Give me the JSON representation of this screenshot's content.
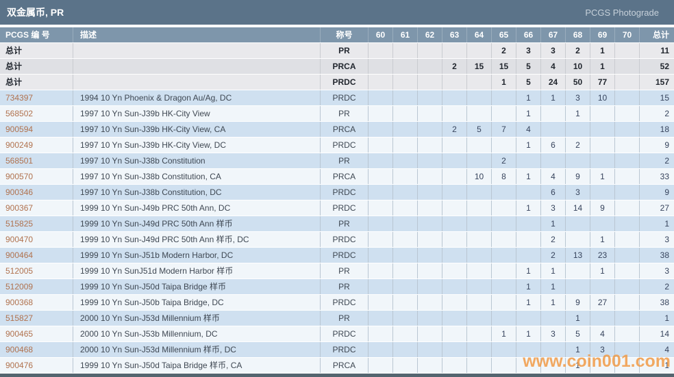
{
  "header": {
    "title": "双金属币, PR",
    "right_label": "PCGS Photograde"
  },
  "columns": [
    "PCGS 编 号",
    "描述",
    "称号",
    "60",
    "61",
    "62",
    "63",
    "64",
    "65",
    "66",
    "67",
    "68",
    "69",
    "70",
    "总计"
  ],
  "grade_keys": [
    "60",
    "61",
    "62",
    "63",
    "64",
    "65",
    "66",
    "67",
    "68",
    "69",
    "70"
  ],
  "total_label": "总计",
  "total_rows": [
    {
      "designation": "PR",
      "grades": {
        "65": 2,
        "66": 3,
        "67": 3,
        "68": 2,
        "69": 1
      },
      "total": 11
    },
    {
      "designation": "PRCA",
      "grades": {
        "63": 2,
        "64": 15,
        "65": 15,
        "66": 5,
        "67": 4,
        "68": 10,
        "69": 1
      },
      "total": 52
    },
    {
      "designation": "PRDC",
      "grades": {
        "65": 1,
        "66": 5,
        "67": 24,
        "68": 50,
        "69": 77
      },
      "total": 157
    }
  ],
  "rows": [
    {
      "pcgs_number": "734397",
      "description": "1994 10 Yn Phoenix & Dragon Au/Ag, DC",
      "designation": "PRDC",
      "grades": {
        "66": 1,
        "67": 1,
        "68": 3,
        "69": 10
      },
      "total": 15
    },
    {
      "pcgs_number": "568502",
      "description": "1997 10 Yn Sun-J39b HK-City View",
      "designation": "PR",
      "grades": {
        "66": 1,
        "68": 1
      },
      "total": 2
    },
    {
      "pcgs_number": "900594",
      "description": "1997 10 Yn Sun-J39b HK-City View, CA",
      "designation": "PRCA",
      "grades": {
        "63": 2,
        "64": 5,
        "65": 7,
        "66": 4
      },
      "total": 18
    },
    {
      "pcgs_number": "900249",
      "description": "1997 10 Yn Sun-J39b HK-City View, DC",
      "designation": "PRDC",
      "grades": {
        "66": 1,
        "67": 6,
        "68": 2
      },
      "total": 9
    },
    {
      "pcgs_number": "568501",
      "description": "1997 10 Yn Sun-J38b Constitution",
      "designation": "PR",
      "grades": {
        "65": 2
      },
      "total": 2
    },
    {
      "pcgs_number": "900570",
      "description": "1997 10 Yn Sun-J38b Constitution, CA",
      "designation": "PRCA",
      "grades": {
        "64": 10,
        "65": 8,
        "66": 1,
        "67": 4,
        "68": 9,
        "69": 1
      },
      "total": 33
    },
    {
      "pcgs_number": "900346",
      "description": "1997 10 Yn Sun-J38b Constitution, DC",
      "designation": "PRDC",
      "grades": {
        "67": 6,
        "68": 3
      },
      "total": 9
    },
    {
      "pcgs_number": "900367",
      "description": "1999 10 Yn Sun-J49b PRC 50th Ann, DC",
      "designation": "PRDC",
      "grades": {
        "66": 1,
        "67": 3,
        "68": 14,
        "69": 9
      },
      "total": 27
    },
    {
      "pcgs_number": "515825",
      "description": "1999 10 Yn Sun-J49d PRC 50th Ann 样币",
      "designation": "PR",
      "grades": {
        "67": 1
      },
      "total": 1
    },
    {
      "pcgs_number": "900470",
      "description": "1999 10 Yn Sun-J49d PRC 50th Ann 样币, DC",
      "designation": "PRDC",
      "grades": {
        "67": 2,
        "69": 1
      },
      "total": 3
    },
    {
      "pcgs_number": "900464",
      "description": "1999 10 Yn Sun-J51b Modern Harbor, DC",
      "designation": "PRDC",
      "grades": {
        "67": 2,
        "68": 13,
        "69": 23
      },
      "total": 38
    },
    {
      "pcgs_number": "512005",
      "description": "1999 10 Yn SunJ51d Modern Harbor 样币",
      "designation": "PR",
      "grades": {
        "66": 1,
        "67": 1,
        "69": 1
      },
      "total": 3
    },
    {
      "pcgs_number": "512009",
      "description": "1999 10 Yn Sun-J50d Taipa Bridge 样币",
      "designation": "PR",
      "grades": {
        "66": 1,
        "67": 1
      },
      "total": 2
    },
    {
      "pcgs_number": "900368",
      "description": "1999 10 Yn Sun-J50b Taipa Bridge, DC",
      "designation": "PRDC",
      "grades": {
        "66": 1,
        "67": 1,
        "68": 9,
        "69": 27
      },
      "total": 38
    },
    {
      "pcgs_number": "515827",
      "description": "2000 10 Yn Sun-J53d Millennium 样币",
      "designation": "PR",
      "grades": {
        "68": 1
      },
      "total": 1
    },
    {
      "pcgs_number": "900465",
      "description": "2000 10 Yn Sun-J53b Millennium, DC",
      "designation": "PRDC",
      "grades": {
        "65": 1,
        "66": 1,
        "67": 3,
        "68": 5,
        "69": 4
      },
      "total": 14
    },
    {
      "pcgs_number": "900468",
      "description": "2000 10 Yn Sun-J53d Millennium 样币, DC",
      "designation": "PRDC",
      "grades": {
        "68": 1,
        "69": 3
      },
      "total": 4
    },
    {
      "pcgs_number": "900476",
      "description": "1999 10 Yn Sun-J50d Taipa Bridge 样币, CA",
      "designation": "PRCA",
      "grades": {
        "68": 1
      },
      "total": 1
    }
  ],
  "watermark": "www.coin001.com",
  "colors": {
    "title_bar": "#5b7389",
    "header_row": "#7e96ab",
    "row_blue": "#cfe0f0",
    "row_white": "#f1f6fa",
    "total_row_light": "#e9e9ec",
    "total_row_dark": "#dfe0e4",
    "grid_line": "#b9c6d2",
    "number_link": "#b0714d",
    "accent_watermark": "#f19840",
    "bottom_bar": "#54656f"
  }
}
